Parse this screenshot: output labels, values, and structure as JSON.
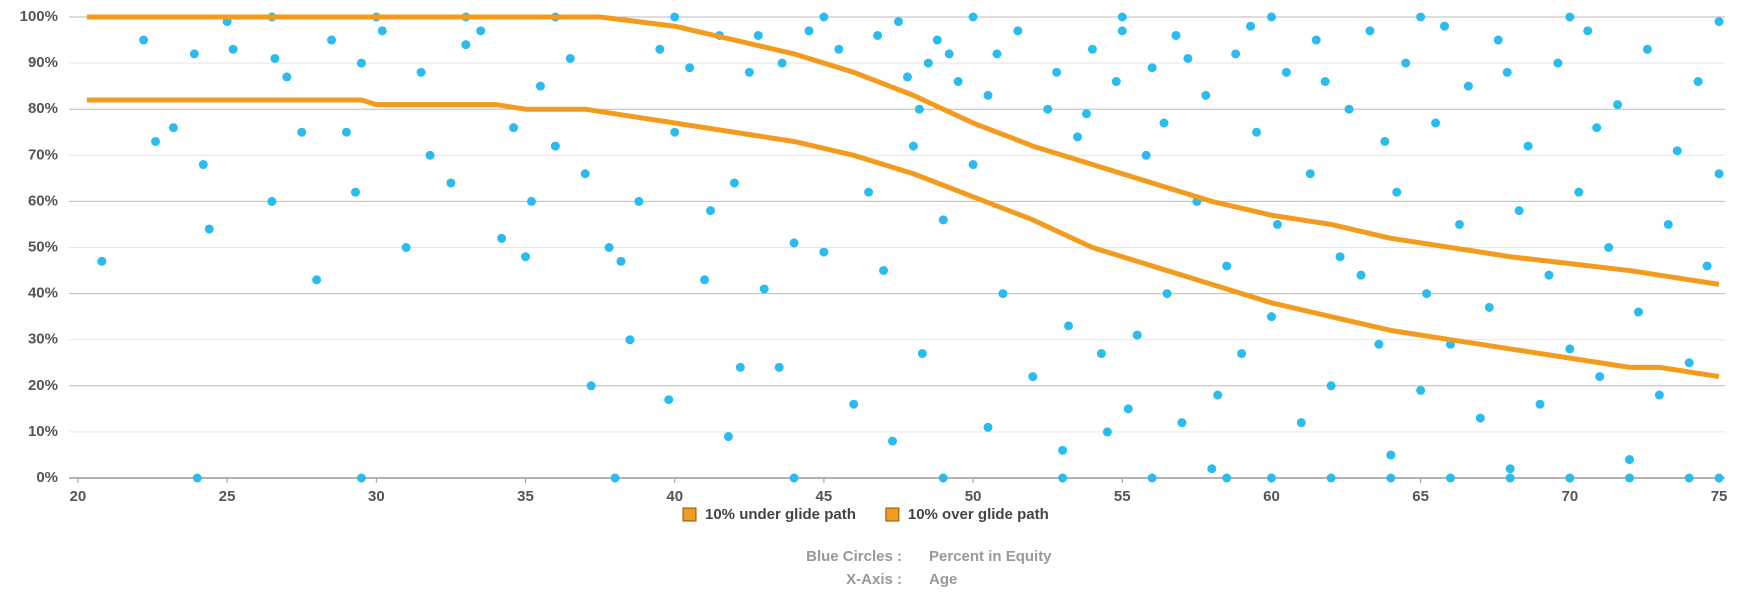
{
  "chart_data": {
    "type": "scatter",
    "xlim": [
      19.7,
      75.2
    ],
    "xticks": [
      20,
      25,
      30,
      35,
      40,
      45,
      50,
      55,
      60,
      65,
      70,
      75
    ],
    "ylim": [
      0,
      100
    ],
    "yticks": [
      {
        "value": 0,
        "label": "0%"
      },
      {
        "value": 10,
        "label": "10%"
      },
      {
        "value": 20,
        "label": "20%"
      },
      {
        "value": 30,
        "label": "30%"
      },
      {
        "value": 40,
        "label": "40%"
      },
      {
        "value": 50,
        "label": "50%"
      },
      {
        "value": 60,
        "label": "60%"
      },
      {
        "value": 70,
        "label": "70%"
      },
      {
        "value": 80,
        "label": "80%"
      },
      {
        "value": 90,
        "label": "90%"
      },
      {
        "value": 100,
        "label": "100%"
      }
    ],
    "grid": true,
    "legend": "bottom",
    "series": [
      {
        "type": "scatter",
        "color": "#2bbcef",
        "x": [
          20.8,
          22.2,
          22.6,
          23.2,
          23.9,
          24.2,
          24.4,
          25,
          25.2,
          26.5,
          26.6,
          27,
          27.5,
          28,
          28.5,
          29,
          29.3,
          29.5,
          30.2,
          31,
          31.5,
          31.8,
          32.5,
          33,
          33.5,
          34.2,
          34.6,
          35,
          35.2,
          35.5,
          36,
          36.5,
          37,
          37.2,
          37.8,
          38.2,
          38.5,
          38.8,
          39.5,
          39.8,
          40,
          40.5,
          41,
          41.2,
          41.5,
          41.8,
          42,
          42.2,
          42.5,
          43,
          43.5,
          44,
          44.5,
          45,
          45.5,
          46,
          46.5,
          47,
          47.3,
          47.5,
          48,
          48.3,
          48.5,
          48.8,
          49,
          49.5,
          50,
          50.5,
          50.8,
          51,
          51.5,
          52,
          52.5,
          53,
          53.2,
          53.5,
          54,
          54.3,
          54.5,
          54.8,
          55,
          55.2,
          55.5,
          55.8,
          56,
          56.5,
          56.8,
          57,
          57.5,
          57.8,
          58,
          58.2,
          58.5,
          58.8,
          59,
          59.3,
          59.5,
          60,
          60.2,
          60.5,
          61,
          61.3,
          61.5,
          62,
          62.3,
          62.6,
          63,
          63.3,
          63.6,
          64,
          64.2,
          64.5,
          65,
          65.2,
          65.5,
          65.8,
          66,
          66.3,
          66.6,
          67,
          67.3,
          67.6,
          68,
          68.3,
          68.6,
          69,
          69.3,
          69.6,
          70,
          70.3,
          70.6,
          71,
          71.3,
          71.6,
          72,
          72.3,
          72.6,
          73,
          73.3,
          73.6,
          74,
          74.3,
          74.6,
          75,
          75,
          24,
          29.5,
          38,
          44,
          49,
          53,
          56,
          58.5,
          60,
          62,
          64,
          66,
          68,
          70,
          72,
          74,
          75,
          26.5,
          30,
          33,
          36,
          40,
          45,
          50,
          55,
          60,
          65,
          70,
          50.5,
          52.8,
          53.8,
          56.4,
          57.2,
          61.8,
          63.8,
          67.9,
          70.9,
          48.2,
          49.2,
          46.8,
          43.6,
          42.8,
          47.8
        ],
        "values": [
          47,
          95,
          73,
          76,
          92,
          68,
          54,
          99,
          93,
          60,
          91,
          87,
          75,
          43,
          95,
          75,
          62,
          90,
          97,
          50,
          88,
          70,
          64,
          94,
          97,
          52,
          76,
          48,
          60,
          85,
          72,
          91,
          66,
          20,
          50,
          47,
          30,
          60,
          93,
          17,
          75,
          89,
          43,
          58,
          96,
          9,
          64,
          24,
          88,
          41,
          24,
          51,
          97,
          49,
          93,
          16,
          62,
          45,
          8,
          99,
          72,
          27,
          90,
          95,
          56,
          86,
          68,
          11,
          92,
          40,
          97,
          22,
          80,
          6,
          33,
          74,
          93,
          27,
          10,
          86,
          97,
          15,
          31,
          70,
          89,
          40,
          96,
          12,
          60,
          83,
          2,
          18,
          46,
          92,
          27,
          98,
          75,
          35,
          55,
          88,
          12,
          66,
          95,
          20,
          48,
          80,
          44,
          97,
          29,
          5,
          62,
          90,
          19,
          40,
          77,
          98,
          29,
          55,
          85,
          13,
          37,
          95,
          2,
          58,
          72,
          16,
          44,
          90,
          28,
          62,
          97,
          22,
          50,
          81,
          4,
          36,
          93,
          18,
          55,
          71,
          25,
          86,
          46,
          99,
          66,
          0,
          0,
          0,
          0,
          0,
          0,
          0,
          0,
          0,
          0,
          0,
          0,
          0,
          0,
          0,
          0,
          0,
          100,
          100,
          100,
          100,
          100,
          100,
          100,
          100,
          100,
          100,
          100,
          83,
          88,
          79,
          77,
          91,
          86,
          73,
          88,
          76,
          80,
          92,
          96,
          90,
          96,
          87
        ]
      },
      {
        "type": "line",
        "name": "10% under glide path",
        "color": "#f39b1e",
        "x": [
          20.3,
          29.5,
          30,
          34,
          35,
          37,
          38,
          40,
          42,
          44,
          46,
          48,
          50,
          52,
          54,
          56,
          58,
          60,
          62,
          64,
          66,
          68,
          70,
          72,
          73,
          75
        ],
        "values": [
          82,
          82,
          81,
          81,
          80,
          80,
          79,
          77,
          75,
          73,
          70,
          66,
          61,
          56,
          50,
          46,
          42,
          38,
          35,
          32,
          30,
          28,
          26,
          24,
          24,
          22
        ]
      },
      {
        "type": "line",
        "name": "10% over glide path",
        "color": "#f39b1e",
        "x": [
          20.3,
          37.5,
          40,
          42,
          44,
          46,
          48,
          50,
          52,
          54,
          56,
          58,
          60,
          62,
          64,
          66,
          68,
          70,
          72,
          75
        ],
        "values": [
          100,
          100,
          98,
          95,
          92,
          88,
          83,
          77,
          72,
          68,
          64,
          60,
          57,
          55,
          52,
          50,
          48,
          46.5,
          45,
          42
        ]
      }
    ],
    "footer": [
      {
        "key": "Blue Circles :",
        "value": "Percent in Equity"
      },
      {
        "key": "X-Axis :",
        "value": "Age"
      }
    ]
  }
}
